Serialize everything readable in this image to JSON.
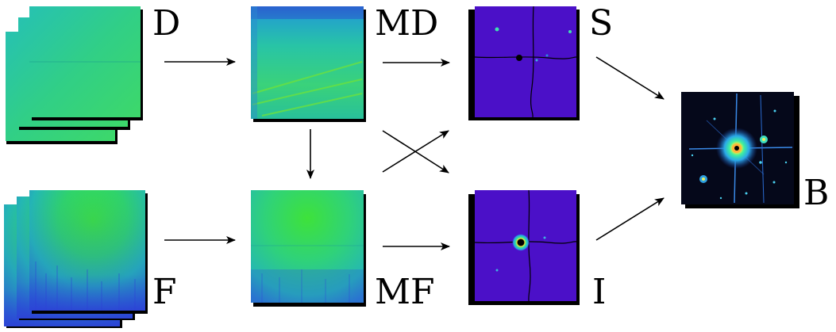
{
  "labels": {
    "d": "D",
    "md": "MD",
    "s": "S",
    "b": "B",
    "f": "F",
    "mf": "MF",
    "i": "I"
  },
  "colors": {
    "arrow": "#000000",
    "dark_green": "#1fc97a",
    "flat_green": "#20e060",
    "teal": "#2bbfcc",
    "viridis_blue": "#3a3ad6",
    "purple_field": "#4b10c8",
    "black": "#000000"
  }
}
